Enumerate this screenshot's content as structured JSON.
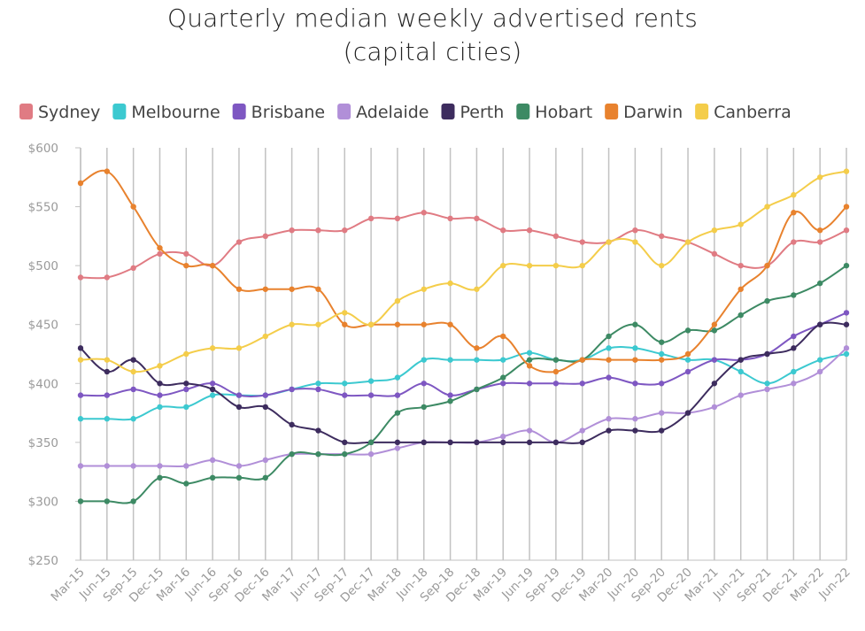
{
  "chart_data": {
    "type": "line",
    "title": [
      "Quarterly median weekly advertised rents",
      "(capital cities)"
    ],
    "xlabel": "",
    "ylabel": "",
    "ylim": [
      250,
      600
    ],
    "y_ticks": [
      600,
      550,
      500,
      450,
      400,
      350,
      300,
      250
    ],
    "y_tick_labels": [
      "$600",
      "$550",
      "$500",
      "$450",
      "$400",
      "$350",
      "$300",
      "$250"
    ],
    "grid": "vertical",
    "legend_position": "top",
    "categories": [
      "Mar-15",
      "Jun-15",
      "Sep-15",
      "Dec-15",
      "Mar-16",
      "Jun-16",
      "Sep-16",
      "Dec-16",
      "Mar-17",
      "Jun-17",
      "Sep-17",
      "Dec-17",
      "Mar-18",
      "Jun-18",
      "Sep-18",
      "Dec-18",
      "Mar-19",
      "Jun-19",
      "Sep-19",
      "Dec-19",
      "Mar-20",
      "Jun-20",
      "Sep-20",
      "Dec-20",
      "Mar-21",
      "Jun-21",
      "Sep-21",
      "Dec-21",
      "Mar-22",
      "Jun-22"
    ],
    "series": [
      {
        "name": "Sydney",
        "color": "#e07b83",
        "values": [
          490,
          490,
          498,
          510,
          510,
          500,
          520,
          525,
          530,
          530,
          530,
          540,
          540,
          545,
          540,
          540,
          530,
          530,
          525,
          520,
          520,
          530,
          525,
          520,
          510,
          500,
          500,
          520,
          520,
          530
        ]
      },
      {
        "name": "Melbourne",
        "color": "#3cc9d0",
        "values": [
          370,
          370,
          370,
          380,
          380,
          390,
          390,
          390,
          395,
          400,
          400,
          402,
          405,
          420,
          420,
          420,
          420,
          426,
          420,
          420,
          430,
          430,
          425,
          420,
          420,
          410,
          400,
          410,
          420,
          425
        ]
      },
      {
        "name": "Brisbane",
        "color": "#7e57c2",
        "values": [
          390,
          390,
          395,
          390,
          395,
          400,
          390,
          390,
          395,
          395,
          390,
          390,
          390,
          400,
          390,
          395,
          400,
          400,
          400,
          400,
          405,
          400,
          400,
          410,
          420,
          420,
          425,
          440,
          450,
          460
        ]
      },
      {
        "name": "Adelaide",
        "color": "#b18fd8",
        "values": [
          330,
          330,
          330,
          330,
          330,
          335,
          330,
          335,
          340,
          340,
          340,
          340,
          345,
          350,
          350,
          350,
          355,
          360,
          350,
          360,
          370,
          370,
          375,
          375,
          380,
          390,
          395,
          400,
          410,
          430
        ]
      },
      {
        "name": "Perth",
        "color": "#3d2c5e",
        "values": [
          430,
          410,
          420,
          400,
          400,
          395,
          380,
          380,
          365,
          360,
          350,
          350,
          350,
          350,
          350,
          350,
          350,
          350,
          350,
          350,
          360,
          360,
          360,
          375,
          400,
          420,
          425,
          430,
          450,
          450
        ]
      },
      {
        "name": "Hobart",
        "color": "#3d8a64",
        "values": [
          300,
          300,
          300,
          320,
          315,
          320,
          320,
          320,
          340,
          340,
          340,
          350,
          375,
          380,
          385,
          395,
          405,
          420,
          420,
          420,
          440,
          450,
          435,
          445,
          445,
          458,
          470,
          475,
          485,
          500
        ]
      },
      {
        "name": "Darwin",
        "color": "#e8822e",
        "values": [
          570,
          580,
          550,
          515,
          500,
          500,
          480,
          480,
          480,
          480,
          450,
          450,
          450,
          450,
          450,
          430,
          440,
          415,
          410,
          420,
          420,
          420,
          420,
          425,
          450,
          480,
          500,
          545,
          530,
          550
        ]
      },
      {
        "name": "Canberra",
        "color": "#f4cd4a",
        "values": [
          420,
          420,
          410,
          415,
          425,
          430,
          430,
          440,
          450,
          450,
          460,
          450,
          470,
          480,
          485,
          480,
          500,
          500,
          500,
          500,
          520,
          520,
          500,
          520,
          530,
          535,
          550,
          560,
          575,
          580
        ]
      }
    ]
  }
}
